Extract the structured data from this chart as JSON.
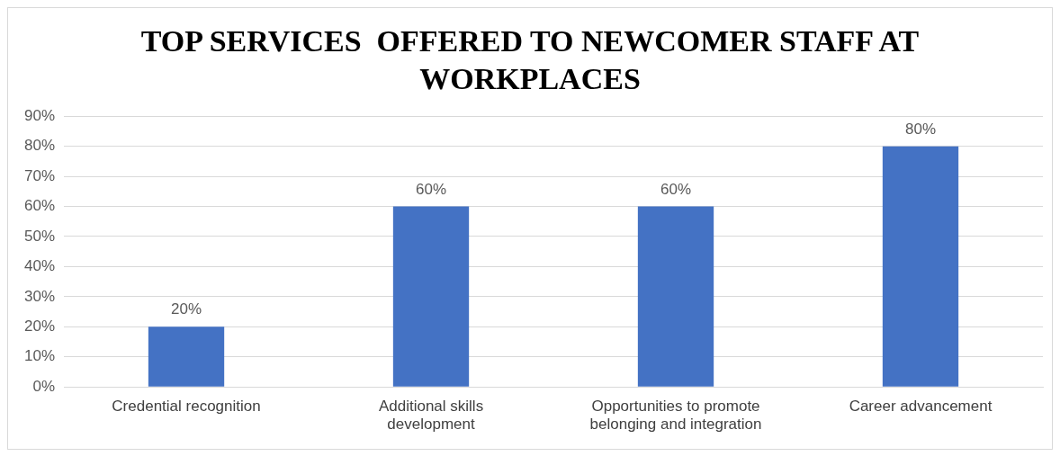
{
  "chart_data": {
    "type": "bar",
    "title": "TOP SERVICES  OFFERED TO NEWCOMER STAFF AT WORKPLACES",
    "categories": [
      "Credential recognition",
      "Additional skills development",
      "Opportunities to promote belonging and integration",
      "Career advancement"
    ],
    "values": [
      20,
      60,
      60,
      80
    ],
    "value_labels": [
      "20%",
      "60%",
      "60%",
      "80%"
    ],
    "color": "#4472c4",
    "ylim": [
      0,
      90
    ],
    "yticks": [
      {
        "value": 0,
        "label": "0%"
      },
      {
        "value": 10,
        "label": "10%"
      },
      {
        "value": 20,
        "label": "20%"
      },
      {
        "value": 30,
        "label": "30%"
      },
      {
        "value": 40,
        "label": "40%"
      },
      {
        "value": 50,
        "label": "50%"
      },
      {
        "value": 60,
        "label": "60%"
      },
      {
        "value": 70,
        "label": "70%"
      },
      {
        "value": 80,
        "label": "80%"
      },
      {
        "value": 90,
        "label": "90%"
      }
    ],
    "grid": "y"
  }
}
